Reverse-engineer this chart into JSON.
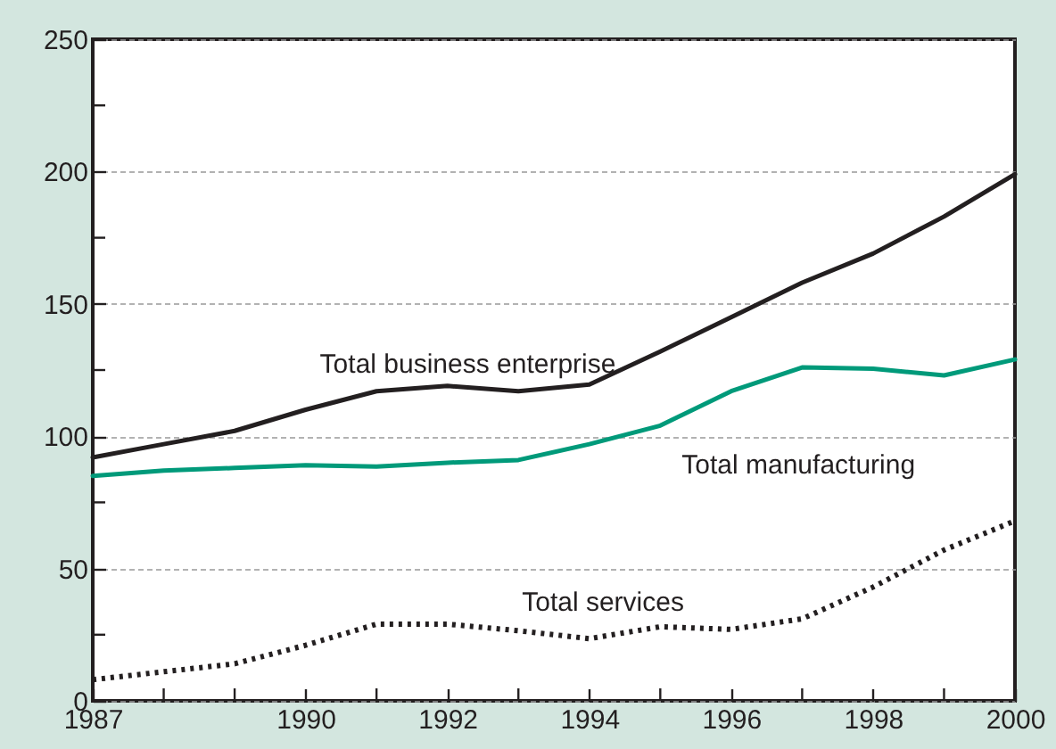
{
  "chart_data": {
    "type": "line",
    "x": [
      1987,
      1988,
      1989,
      1990,
      1991,
      1992,
      1993,
      1994,
      1995,
      1996,
      1997,
      1998,
      1999,
      2000
    ],
    "series": [
      {
        "name": "Total business enterprise",
        "color": "#231f20",
        "line_style": "solid",
        "values": [
          92,
          97,
          102,
          110,
          117,
          119,
          117,
          119.5,
          132,
          145,
          158,
          169,
          183,
          199
        ]
      },
      {
        "name": "Total manufacturing",
        "color": "#009a7a",
        "line_style": "solid",
        "values": [
          85,
          87,
          88,
          89,
          88.5,
          90,
          91,
          97,
          104,
          117,
          126,
          125.5,
          123,
          129
        ]
      },
      {
        "name": "Total services",
        "color": "#231f20",
        "line_style": "dotted",
        "values": [
          8,
          11,
          14,
          21,
          29,
          29,
          26.5,
          23.5,
          28,
          27,
          31,
          43,
          57,
          68
        ]
      }
    ],
    "xlim": [
      1987,
      2000
    ],
    "xticks": [
      1987,
      {
        "value": 1988,
        "label": null
      },
      {
        "value": 1989,
        "label": null
      },
      1990,
      {
        "value": 1991,
        "label": null
      },
      1992,
      {
        "value": 1993,
        "label": null
      },
      1994,
      {
        "value": 1995,
        "label": null
      },
      1996,
      {
        "value": 1997,
        "label": null
      },
      1998,
      {
        "value": 1999,
        "label": null
      },
      2000
    ],
    "ylim": [
      0,
      250
    ],
    "yticks": [
      0,
      {
        "value": 25,
        "label": null
      },
      50,
      {
        "value": 75,
        "label": null
      },
      100,
      {
        "value": 125,
        "label": null
      },
      150,
      {
        "value": 175,
        "label": null
      },
      200,
      {
        "value": 225,
        "label": null
      },
      250
    ],
    "grid": "y",
    "marker": "none"
  }
}
